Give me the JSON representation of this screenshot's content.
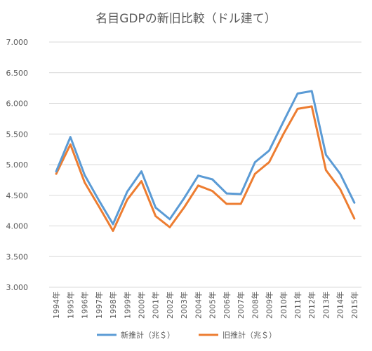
{
  "chart_data": {
    "type": "line",
    "title": "名目GDPの新旧比較（ドル建て）",
    "xlabel": "",
    "ylabel": "",
    "categories": [
      "1994年",
      "1995年",
      "1996年",
      "1997年",
      "1998年",
      "1999年",
      "2000年",
      "2001年",
      "2002年",
      "2003年",
      "2004年",
      "2005年",
      "2006年",
      "2007年",
      "2008年",
      "2009年",
      "2010年",
      "2011年",
      "2012年",
      "2013年",
      "2014年",
      "2015年"
    ],
    "y_ticks": [
      "3.000",
      "3.500",
      "4.000",
      "4.500",
      "5.000",
      "5.500",
      "6.000",
      "6.500",
      "7.000"
    ],
    "ylim": [
      3.0,
      7.0
    ],
    "grid": true,
    "legend_position": "bottom",
    "series": [
      {
        "name": "新推計（兆＄）",
        "color": "#5b9bd5",
        "values": [
          4.89,
          5.45,
          4.83,
          4.42,
          4.03,
          4.56,
          4.89,
          4.3,
          4.11,
          4.45,
          4.82,
          4.76,
          4.53,
          4.52,
          5.04,
          5.23,
          5.7,
          6.16,
          6.2,
          5.16,
          4.85,
          4.38
        ]
      },
      {
        "name": "旧推計（兆＄）",
        "color": "#ed7d31",
        "values": [
          4.85,
          5.33,
          4.71,
          4.32,
          3.92,
          4.43,
          4.73,
          4.16,
          3.98,
          4.3,
          4.66,
          4.57,
          4.36,
          4.36,
          4.85,
          5.04,
          5.5,
          5.91,
          5.95,
          4.91,
          4.6,
          4.12
        ]
      }
    ]
  }
}
